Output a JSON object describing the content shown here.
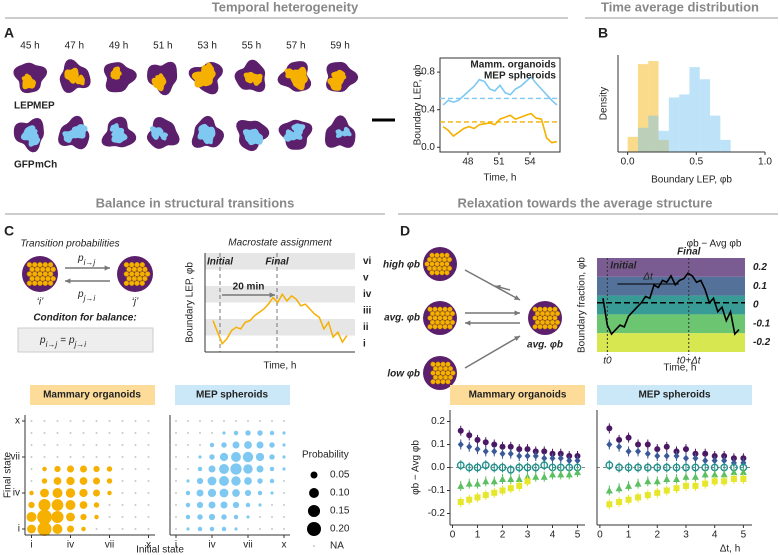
{
  "headers": [
    "Temporal heterogeneity",
    "Time average distribution",
    "Balance in structural transitions",
    "Relaxation towards the average structure"
  ],
  "panel_labels": [
    "A",
    "B",
    "C",
    "D"
  ],
  "panel_a": {
    "times": [
      "45 h",
      "47 h",
      "49 h",
      "51 h",
      "53 h",
      "55 h",
      "57 h",
      "59 h"
    ],
    "legend_top": [
      "LEP",
      "MEP"
    ],
    "legend_bottom": [
      "GFP",
      "mCh"
    ]
  },
  "panel_c": {
    "title": "Transition probabilities",
    "p_ij": [
      "p",
      "i→j"
    ],
    "p_ji": [
      "p",
      "j→i"
    ],
    "state_i": "‘i’",
    "state_j": "‘j’",
    "condition": "Conditon for balance:",
    "formula": [
      "p",
      "i→j",
      "=",
      "p",
      "j→i"
    ]
  },
  "panel_d": {
    "high": "high φb",
    "avg": "avg. φb",
    "low": "low φb",
    "target": "avg. φb"
  },
  "probability_legend": {
    "title": "Probability",
    "values": [
      {
        "value": 0.05,
        "label": "0.05"
      },
      {
        "value": 0.1,
        "label": "0.10"
      },
      {
        "value": 0.15,
        "label": "0.15"
      },
      {
        "value": 0.2,
        "label": "0.20"
      }
    ],
    "na": "NA"
  },
  "chart_data": [
    {
      "type": "line",
      "ylabel": "Boundary LEP, φb",
      "xlabel": "Time, h",
      "x": [
        45.6,
        46.1,
        46.6,
        47.1,
        47.6,
        48.1,
        48.6,
        49.1,
        49.6,
        50.1,
        50.6,
        51.1,
        51.6,
        52.1,
        52.6,
        53.1,
        53.6,
        54.1,
        54.6,
        55.1,
        55.6,
        56.1,
        56.6
      ],
      "xlim": [
        45.3,
        56.9
      ],
      "xticks": [
        48,
        51,
        54
      ],
      "ylim": [
        -0.05,
        0.95
      ],
      "yticks": [
        {
          "value": 0,
          "label": "0.0"
        },
        {
          "value": 0.4,
          "label": "0.4"
        },
        {
          "value": 0.8,
          "label": "0.8"
        }
      ],
      "series": [
        {
          "name": "Mamm. organoids",
          "color": "#f5b000",
          "mean": 0.27,
          "values": [
            0.22,
            0.18,
            0.12,
            0.16,
            0.2,
            0.22,
            0.2,
            0.24,
            0.25,
            0.26,
            0.24,
            0.3,
            0.32,
            0.34,
            0.3,
            0.32,
            0.34,
            0.36,
            0.31,
            0.3,
            0.1,
            0.05,
            0.06
          ]
        },
        {
          "name": "MEP spheroids",
          "color": "#7ec8f2",
          "mean": 0.52,
          "values": [
            0.45,
            0.5,
            0.48,
            0.5,
            0.55,
            0.6,
            0.65,
            0.72,
            0.7,
            0.62,
            0.6,
            0.66,
            0.58,
            0.56,
            0.62,
            0.65,
            0.7,
            0.75,
            0.68,
            0.62,
            0.56,
            0.5,
            0.45
          ]
        }
      ]
    },
    {
      "type": "histogram",
      "ylabel": "Density",
      "xlabel": "Boundary LEP, φb",
      "bins": [
        0.0,
        0.075,
        0.15,
        0.225,
        0.3,
        0.375,
        0.45,
        0.525,
        0.6,
        0.675,
        0.75
      ],
      "xlim": [
        -0.07,
        1.0
      ],
      "xticks": [
        {
          "value": 0,
          "label": "0.0"
        },
        {
          "value": 0.5,
          "label": "0.5"
        },
        {
          "value": 1,
          "label": "1.0"
        }
      ],
      "ylim": [
        0,
        1.6
      ],
      "series": [
        {
          "color": "#f5b000",
          "values": [
            0.25,
            1.45,
            1.5,
            0.2,
            0,
            0,
            0,
            0,
            0,
            0
          ]
        },
        {
          "color": "#6ec1f0",
          "values": [
            0,
            0.4,
            0.6,
            0.35,
            0.9,
            0.95,
            1.4,
            1.2,
            0.6,
            0.2
          ]
        }
      ]
    },
    {
      "type": "states",
      "title": "Macrostate assignment",
      "ylabel": "Boundary LEP, φb",
      "xlabel": "Time, h",
      "states": [
        "vi",
        "v",
        "iv",
        "iii",
        "ii",
        "i"
      ],
      "initial": "Initial",
      "final": "Final",
      "interval": "20 min",
      "color": "#f5b000",
      "ylim": [
        0,
        6
      ],
      "values": [
        1.9,
        1.2,
        0.5,
        0.8,
        1.3,
        1.5,
        1.4,
        1.8,
        1.9,
        2.2,
        2.4,
        2.6,
        2.9,
        3.3,
        3.0,
        3.5,
        3.1,
        3.4,
        3.2,
        2.8,
        2.9,
        2.6,
        2.3,
        2.1,
        1.4,
        1.8,
        0.9,
        1.2,
        0.6,
        1.0
      ]
    },
    {
      "type": "dots",
      "title": "Mammary organoids",
      "color": "#f5b000",
      "xlabel": "Initial state",
      "ylabel": "Final state",
      "xticks": [
        {
          "value": 1,
          "label": "i"
        },
        {
          "value": 4,
          "label": "iv"
        },
        {
          "value": 7,
          "label": "vii"
        },
        {
          "value": 10,
          "label": "x"
        }
      ],
      "yticks": [
        {
          "value": 1,
          "label": "i"
        },
        {
          "value": 4,
          "label": "iv"
        },
        {
          "value": 7,
          "label": "vii"
        },
        {
          "value": 10,
          "label": "x"
        }
      ],
      "values": [
        [
          0.08,
          0.2,
          0.1,
          0.05,
          0.02,
          null,
          null,
          null,
          null,
          null
        ],
        [
          0.1,
          0.22,
          0.15,
          0.08,
          0.04,
          0.02,
          null,
          null,
          null,
          null
        ],
        [
          0.04,
          0.15,
          0.14,
          0.1,
          0.06,
          0.03,
          null,
          null,
          null,
          null
        ],
        [
          0.02,
          0.08,
          0.1,
          0.09,
          0.07,
          0.05,
          0.02,
          null,
          null,
          null
        ],
        [
          null,
          0.03,
          0.06,
          0.07,
          0.06,
          0.05,
          0.03,
          null,
          null,
          null
        ],
        [
          null,
          0.02,
          0.04,
          0.05,
          0.05,
          0.04,
          0.03,
          null,
          null,
          null
        ],
        [
          null,
          null,
          null,
          null,
          null,
          null,
          null,
          null,
          null,
          null
        ],
        [
          null,
          null,
          null,
          null,
          null,
          null,
          null,
          null,
          null,
          null
        ],
        [
          null,
          null,
          null,
          null,
          null,
          null,
          null,
          null,
          null,
          null
        ],
        [
          null,
          null,
          null,
          null,
          null,
          null,
          null,
          null,
          null,
          null
        ]
      ]
    },
    {
      "type": "dots",
      "title": "MEP spheroids",
      "color": "#7ec8f2",
      "xticks": [
        {
          "value": 1,
          "label": "i"
        },
        {
          "value": 4,
          "label": "iv"
        },
        {
          "value": 7,
          "label": "vii"
        },
        {
          "value": 10,
          "label": "x"
        }
      ],
      "values": [
        [
          null,
          0.01,
          0.02,
          0.02,
          0.02,
          0.01,
          null,
          null,
          null,
          null
        ],
        [
          null,
          0.02,
          0.03,
          0.04,
          0.03,
          0.02,
          0.01,
          null,
          null,
          null
        ],
        [
          null,
          0.02,
          0.04,
          0.05,
          0.05,
          0.04,
          0.02,
          0.01,
          null,
          null
        ],
        [
          null,
          0.02,
          0.05,
          0.07,
          0.08,
          0.06,
          0.04,
          0.02,
          0.01,
          null
        ],
        [
          null,
          0.01,
          0.04,
          0.08,
          0.1,
          0.09,
          0.06,
          0.03,
          0.02,
          null
        ],
        [
          null,
          null,
          0.02,
          0.05,
          0.1,
          0.13,
          0.09,
          0.05,
          0.02,
          0.01
        ],
        [
          null,
          null,
          0.01,
          0.03,
          0.07,
          0.1,
          0.11,
          0.07,
          0.03,
          0.01
        ],
        [
          null,
          null,
          null,
          0.02,
          0.03,
          0.05,
          0.06,
          0.05,
          0.03,
          0.01
        ],
        [
          null,
          null,
          null,
          null,
          0.01,
          0.02,
          0.03,
          0.03,
          0.02,
          0.01
        ],
        [
          null,
          null,
          null,
          null,
          null,
          null,
          null,
          null,
          null,
          null
        ]
      ]
    },
    {
      "type": "bands",
      "title": "φb − Avg φb",
      "ylabel": "Boundary fraction, φb",
      "xlabel": "Time, h",
      "initial": "Initial",
      "final": "Final",
      "interval": "Δt",
      "t0": "t0",
      "t1": "t0+Δt",
      "band_values": [
        0.2,
        0.1,
        0,
        -0.1,
        -0.2
      ],
      "band_colors": [
        "#6b4a87",
        "#41628f",
        "#23908b",
        "#5cbf61",
        "#d2e43c"
      ],
      "ylim": [
        0,
        1.05
      ],
      "mean": 0.55,
      "values": [
        0.6,
        0.3,
        0.2,
        0.25,
        0.3,
        0.28,
        0.4,
        0.45,
        0.5,
        0.55,
        0.62,
        0.6,
        0.75,
        0.72,
        0.8,
        0.78,
        0.85,
        0.75,
        0.8,
        0.82,
        0.88,
        0.85,
        0.78,
        0.8,
        0.7,
        0.55,
        0.6,
        0.45,
        0.5,
        0.35,
        0.45,
        0.2,
        0.25
      ]
    },
    {
      "type": "scatter",
      "title": "Mammary organoids",
      "ylabel": "φb − Avg φb",
      "x": [
        0.33,
        0.67,
        1,
        1.33,
        1.67,
        2,
        2.33,
        2.67,
        3,
        3.33,
        3.67,
        4,
        4.33,
        4.67,
        5
      ],
      "xlim": [
        -0.1,
        5.3
      ],
      "xticks": [
        0,
        1,
        2,
        3,
        4,
        5
      ],
      "ylim": [
        -0.25,
        0.25
      ],
      "yticks": [
        -0.2,
        -0.1,
        {
          "value": 0,
          "label": "0.0"
        },
        0.1,
        0.2
      ],
      "hline": 0,
      "series": [
        {
          "color": "#4b1863",
          "marker": "circle",
          "values": [
            0.16,
            0.14,
            0.12,
            0.11,
            0.1,
            0.09,
            0.09,
            0.08,
            0.08,
            0.07,
            0.07,
            0.06,
            0.06,
            0.05,
            0.05
          ]
        },
        {
          "color": "#3b5998",
          "marker": "diamond",
          "values": [
            0.1,
            0.09,
            0.08,
            0.07,
            0.07,
            0.06,
            0.06,
            0.05,
            0.05,
            0.05,
            0.04,
            0.04,
            0.04,
            0.03,
            0.03
          ]
        },
        {
          "color": "#23908b",
          "marker": "open",
          "values": [
            0.01,
            0,
            0,
            0.01,
            0,
            0,
            -0.01,
            0,
            0,
            0,
            0.01,
            0,
            0,
            0,
            0
          ]
        },
        {
          "color": "#5cbf61",
          "marker": "triangle",
          "values": [
            -0.08,
            -0.07,
            -0.07,
            -0.06,
            -0.06,
            -0.05,
            -0.05,
            -0.05,
            -0.04,
            -0.04,
            -0.04,
            -0.03,
            -0.03,
            -0.03,
            -0.02
          ]
        },
        {
          "color": "#e6e62a",
          "marker": "square",
          "values": [
            -0.15,
            -0.14,
            -0.13,
            -0.12,
            -0.11,
            -0.1,
            -0.09,
            -0.08,
            -0.06,
            null,
            null,
            null,
            null,
            null,
            null
          ]
        }
      ]
    },
    {
      "type": "scatter",
      "title": "MEP spheroids",
      "xlabel": "Δt, h",
      "x": [
        0.33,
        0.67,
        1,
        1.33,
        1.67,
        2,
        2.33,
        2.67,
        3,
        3.33,
        3.67,
        4,
        4.33,
        4.67,
        5
      ],
      "xlim": [
        -0.1,
        5.3
      ],
      "xticks": [
        0,
        1,
        2,
        3,
        4,
        5
      ],
      "ylim": [
        -0.25,
        0.25
      ],
      "hline": 0,
      "series": [
        {
          "color": "#4b1863",
          "marker": "circle",
          "values": [
            0.17,
            0.12,
            0.13,
            0.1,
            0.1,
            0.08,
            0.09,
            0.07,
            0.08,
            0.06,
            0.06,
            0.05,
            0.05,
            0.04,
            0.04
          ]
        },
        {
          "color": "#3b5998",
          "marker": "diamond",
          "values": [
            0.1,
            0.09,
            0.07,
            0.07,
            0.06,
            0.05,
            0.05,
            0.05,
            0.04,
            0.04,
            0.03,
            0.03,
            0.03,
            0.02,
            0.02
          ]
        },
        {
          "color": "#23908b",
          "marker": "open",
          "values": [
            0.01,
            0,
            0,
            0,
            0,
            0,
            0,
            0,
            0,
            0,
            0,
            0,
            0,
            0,
            0
          ]
        },
        {
          "color": "#5cbf61",
          "marker": "triangle",
          "values": [
            -0.1,
            -0.09,
            -0.08,
            -0.07,
            -0.06,
            -0.06,
            -0.05,
            -0.05,
            -0.04,
            -0.04,
            -0.03,
            -0.03,
            -0.03,
            -0.02,
            -0.02
          ]
        },
        {
          "color": "#e6e62a",
          "marker": "square",
          "values": [
            -0.16,
            -0.15,
            -0.14,
            -0.13,
            -0.12,
            -0.11,
            -0.1,
            -0.09,
            -0.08,
            -0.08,
            -0.07,
            -0.06,
            -0.06,
            -0.05,
            -0.05
          ]
        }
      ]
    }
  ]
}
